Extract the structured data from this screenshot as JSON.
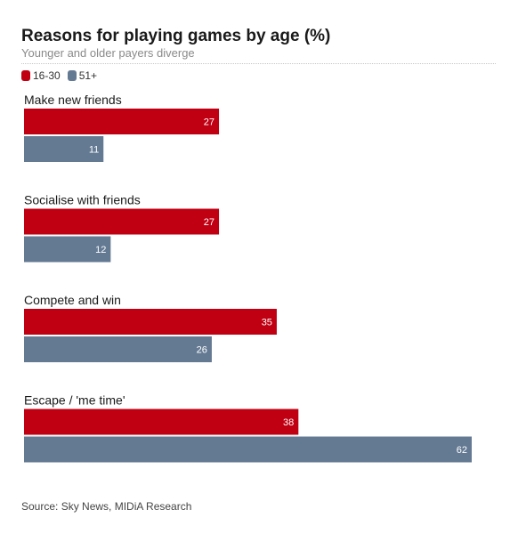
{
  "header": {
    "title": "Reasons for playing games by age (%)",
    "subtitle": "Younger and older payers diverge"
  },
  "footer": {
    "source": "Source: Sky News, MIDiA Research"
  },
  "colors": {
    "series_1": "#c00012",
    "series_2": "#647a93"
  },
  "chart_data": {
    "type": "bar",
    "orientation": "horizontal",
    "title": "Reasons for playing games by age (%)",
    "subtitle": "Younger and older payers diverge",
    "categories": [
      "Make new friends",
      "Socialise with friends",
      "Compete and win",
      "Escape / 'me time'"
    ],
    "series": [
      {
        "name": "16-30",
        "color": "#c00012",
        "values": [
          27,
          27,
          35,
          38
        ]
      },
      {
        "name": "51+",
        "color": "#647a93",
        "values": [
          11,
          12,
          26,
          62
        ]
      }
    ],
    "xlim": [
      0,
      62
    ],
    "grid": false,
    "legend": "top-left",
    "data_labels": true
  }
}
